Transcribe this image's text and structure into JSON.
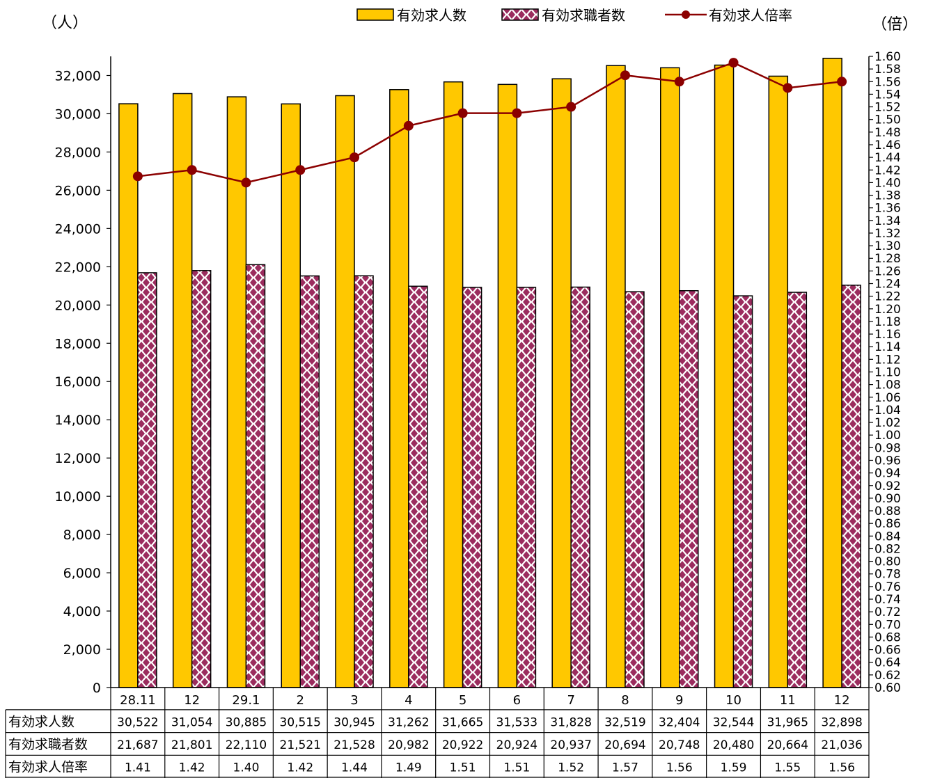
{
  "chart_data": {
    "type": "bar",
    "categories": [
      "28.11",
      "12",
      "29.1",
      "2",
      "3",
      "4",
      "5",
      "6",
      "7",
      "8",
      "9",
      "10",
      "11",
      "12"
    ],
    "series": [
      {
        "name": "有効求人数",
        "kind": "bar",
        "axis": "left",
        "color": "#FFC800",
        "values": [
          30522,
          31054,
          30885,
          30515,
          30945,
          31262,
          31665,
          31533,
          31828,
          32519,
          32404,
          32544,
          31965,
          32898
        ]
      },
      {
        "name": "有効求職者数",
        "kind": "bar",
        "axis": "left",
        "pattern": "diamond",
        "color": "#9B2C5E",
        "values": [
          21687,
          21801,
          22110,
          21521,
          21528,
          20982,
          20922,
          20924,
          20937,
          20694,
          20748,
          20480,
          20664,
          21036
        ]
      },
      {
        "name": "有効求人倍率",
        "kind": "line",
        "axis": "right",
        "marker": "circle",
        "color": "#8B0000",
        "values": [
          1.41,
          1.42,
          1.4,
          1.42,
          1.44,
          1.49,
          1.51,
          1.51,
          1.52,
          1.57,
          1.56,
          1.59,
          1.55,
          1.56
        ]
      }
    ],
    "left_axis": {
      "unit_label": "（人）",
      "min": 0,
      "max": 33000,
      "step": 2000
    },
    "right_axis": {
      "unit_label": "（倍）",
      "min": 0.6,
      "max": 1.6,
      "step": 0.02
    },
    "table": {
      "row_labels": [
        "有効求人数",
        "有効求職者数",
        "有効求人倍率"
      ],
      "rows": [
        [
          "30,522",
          "31,054",
          "30,885",
          "30,515",
          "30,945",
          "31,262",
          "31,665",
          "31,533",
          "31,828",
          "32,519",
          "32,404",
          "32,544",
          "31,965",
          "32,898"
        ],
        [
          "21,687",
          "21,801",
          "22,110",
          "21,521",
          "21,528",
          "20,982",
          "20,922",
          "20,924",
          "20,937",
          "20,694",
          "20,748",
          "20,480",
          "20,664",
          "21,036"
        ],
        [
          "1.41",
          "1.42",
          "1.40",
          "1.42",
          "1.44",
          "1.49",
          "1.51",
          "1.51",
          "1.52",
          "1.57",
          "1.56",
          "1.59",
          "1.55",
          "1.56"
        ]
      ]
    },
    "legend_position": "top-right",
    "grid": false
  }
}
